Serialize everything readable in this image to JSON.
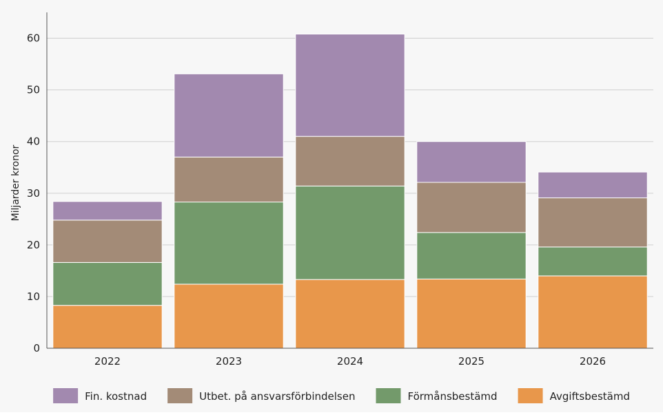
{
  "chart_data": {
    "type": "bar",
    "stacked": true,
    "categories": [
      "2022",
      "2023",
      "2024",
      "2025",
      "2026"
    ],
    "series": [
      {
        "name": "Avgiftsbestämd",
        "color": "#E8974B",
        "values": [
          8.3,
          12.4,
          13.3,
          13.4,
          14.0
        ]
      },
      {
        "name": "Förmånsbestämd",
        "color": "#739A6B",
        "values": [
          8.3,
          15.9,
          18.1,
          9.0,
          5.6
        ]
      },
      {
        "name": "Utbet. på ansvarsförbindelsen",
        "color": "#A38B77",
        "values": [
          8.2,
          8.7,
          9.6,
          9.7,
          9.5
        ]
      },
      {
        "name": "Fin. kostnad",
        "color": "#A289AF",
        "values": [
          3.6,
          16.1,
          19.8,
          7.9,
          5.0
        ]
      }
    ],
    "legend_order": [
      "Fin. kostnad",
      "Utbet. på ansvarsförbindelsen",
      "Förmånsbestämd",
      "Avgiftsbestämd"
    ],
    "title": "",
    "xlabel": "",
    "ylabel": "Miljarder kronor",
    "ylim": [
      0,
      65
    ],
    "yticks": [
      "0",
      "10",
      "20",
      "30",
      "40",
      "50",
      "60"
    ],
    "grid": true,
    "legend_position": "bottom"
  }
}
